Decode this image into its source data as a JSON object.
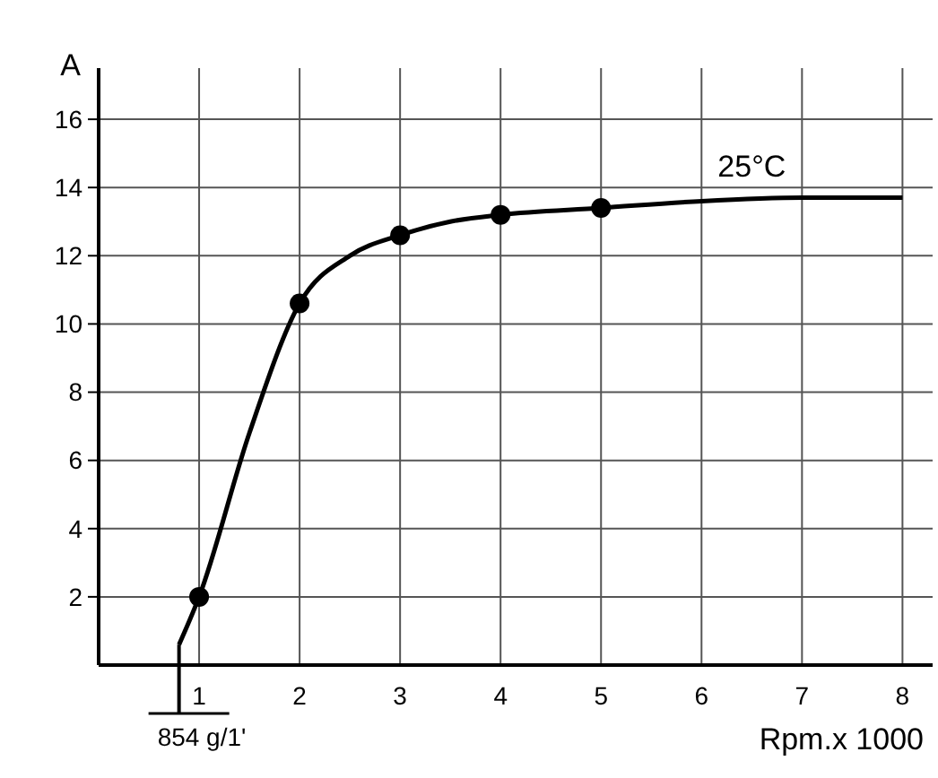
{
  "chart_data": {
    "type": "line",
    "xlabel": "Rpm.x 1000",
    "ylabel": "A",
    "xlim": [
      0,
      8.3
    ],
    "ylim": [
      0,
      17.5
    ],
    "xticks": [
      1,
      2,
      3,
      4,
      5,
      6,
      7,
      8
    ],
    "yticks": [
      2,
      4,
      6,
      8,
      10,
      12,
      14,
      16
    ],
    "grid": true,
    "line_style": "solid",
    "series": [
      {
        "name": "25°C",
        "color": "#000000",
        "marker": "none",
        "x": [
          0.8,
          1,
          1.5,
          2,
          2.5,
          3,
          3.5,
          4,
          5,
          6,
          7,
          8
        ],
        "values": [
          0.6,
          2,
          6.8,
          10.6,
          12,
          12.6,
          13,
          13.2,
          13.4,
          13.6,
          13.7,
          13.7
        ]
      },
      {
        "type": "scatter",
        "color": "#000000",
        "marker": "circle",
        "x": [
          1,
          2,
          3,
          4,
          5
        ],
        "values": [
          2,
          10.6,
          12.6,
          13.2,
          13.4
        ]
      }
    ],
    "annotations": [
      {
        "text": "854 g/1'",
        "x": 0.8,
        "y": 0.6
      }
    ]
  }
}
